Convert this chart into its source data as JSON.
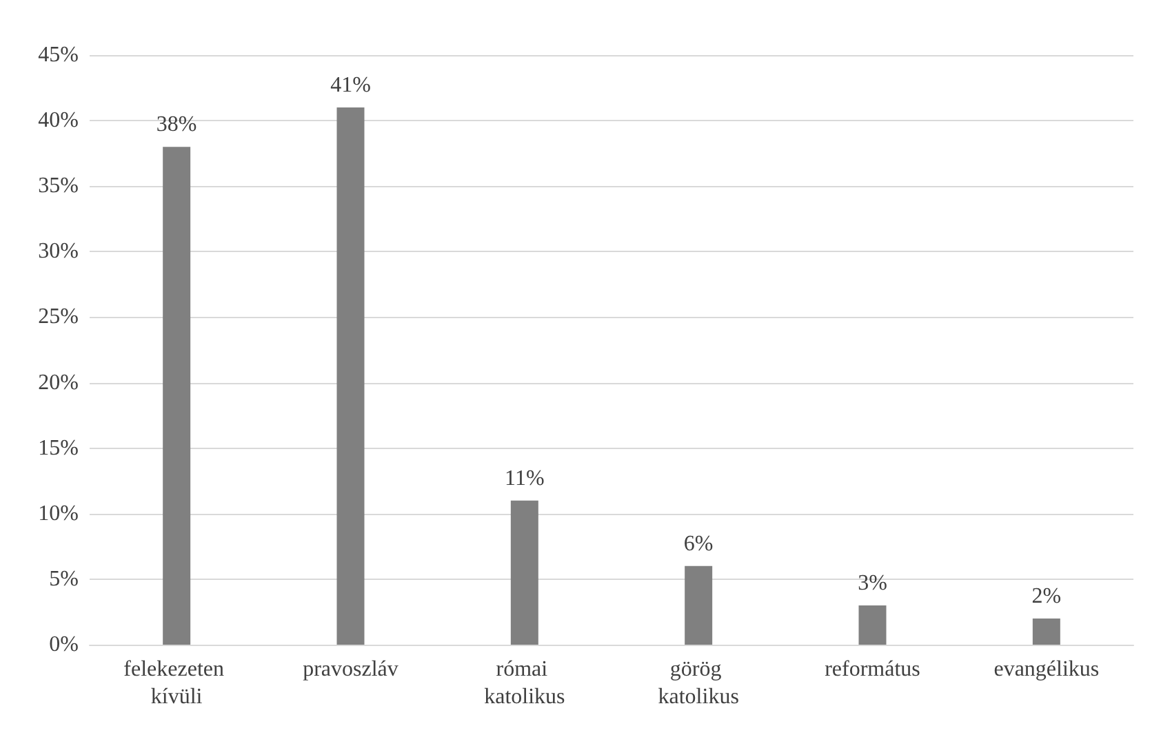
{
  "chart_data": {
    "type": "bar",
    "categories": [
      "felekezeten kívüli",
      "pravoszláv",
      "római katolikus",
      "görög katolikus",
      "református",
      "evangélikus"
    ],
    "values": [
      38,
      41,
      11,
      6,
      3,
      2
    ],
    "value_labels": [
      "38%",
      "41%",
      "11%",
      "6%",
      "3%",
      "2%"
    ],
    "color": "#808080",
    "ylim": [
      0,
      45
    ],
    "yticks": [
      {
        "value": 0,
        "label": "0%"
      },
      {
        "value": 5,
        "label": "5%"
      },
      {
        "value": 10,
        "label": "10%"
      },
      {
        "value": 15,
        "label": "15%"
      },
      {
        "value": 20,
        "label": "20%"
      },
      {
        "value": 25,
        "label": "25%"
      },
      {
        "value": 30,
        "label": "30%"
      },
      {
        "value": 35,
        "label": "35%"
      },
      {
        "value": 40,
        "label": "40%"
      },
      {
        "value": 45,
        "label": "45%"
      }
    ],
    "grid": "y"
  }
}
